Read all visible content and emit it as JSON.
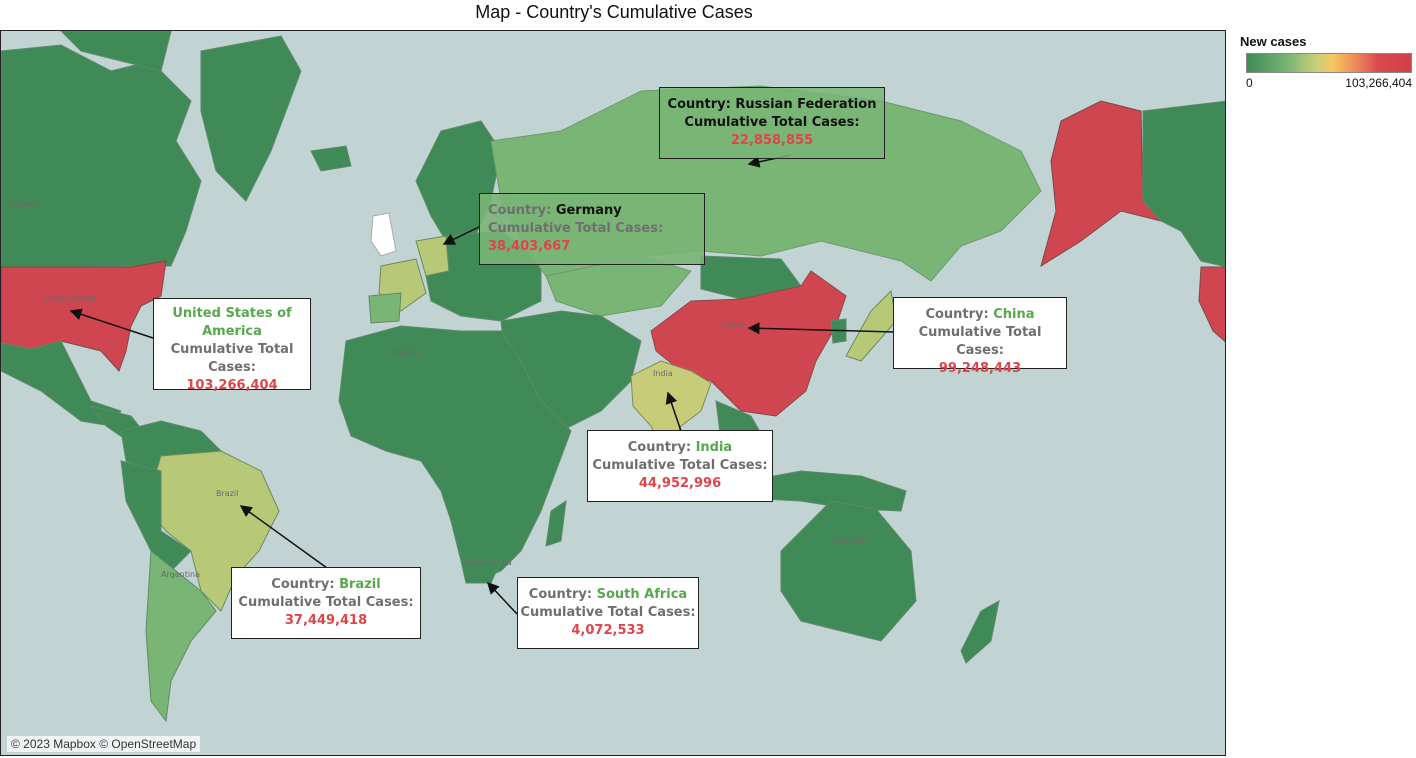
{
  "title": "Map - Country's Cumulative Cases",
  "legend": {
    "title": "New cases",
    "min_label": "0",
    "max_label": "103,266,404",
    "colors": [
      "#3f8a56",
      "#79b575",
      "#c7cf78",
      "#f7c862",
      "#d84a4e"
    ]
  },
  "attribution": "© 2023 Mapbox © OpenStreetMap",
  "map_labels": {
    "usa": "United States",
    "china": "China",
    "india": "India",
    "brazil": "Brazil",
    "australia": "Australia",
    "algeria": "Algeria",
    "canada": "Canada",
    "argentina": "Argentina",
    "south_africa": "South Africa"
  },
  "callouts": {
    "russia": {
      "country_label": "Country:",
      "country": "Russian Federation",
      "metric_label": "Cumulative Total Cases:",
      "value": "22,858,855"
    },
    "germany": {
      "country_label": "Country:",
      "country": "Germany",
      "metric_label": "Cumulative Total Cases:",
      "value": "38,403,667"
    },
    "usa": {
      "country": "United States of America",
      "metric_label": "Cumulative Total Cases:",
      "value": "103,266,404"
    },
    "china": {
      "country_label": "Country:",
      "country": "China",
      "metric_label": "Cumulative Total Cases:",
      "value": "99,248,443"
    },
    "india": {
      "country_label": "Country:",
      "country": "India",
      "metric_label": "Cumulative Total Cases:",
      "value": "44,952,996"
    },
    "brazil": {
      "country_label": "Country:",
      "country": "Brazil",
      "metric_label": "Cumulative Total Cases:",
      "value": "37,449,418"
    },
    "south_africa": {
      "country_label": "Country:",
      "country": "South Africa",
      "metric_label": "Cumulative Total Cases:",
      "value": "4,072,533"
    }
  },
  "colors": {
    "ocean": "#c2d3d4",
    "low": "#3f8a56",
    "mid_green": "#79b575",
    "yellow_green": "#b7c977",
    "high": "#cf4650",
    "value_text": "#e0444a",
    "country_text": "#57a84d"
  }
}
